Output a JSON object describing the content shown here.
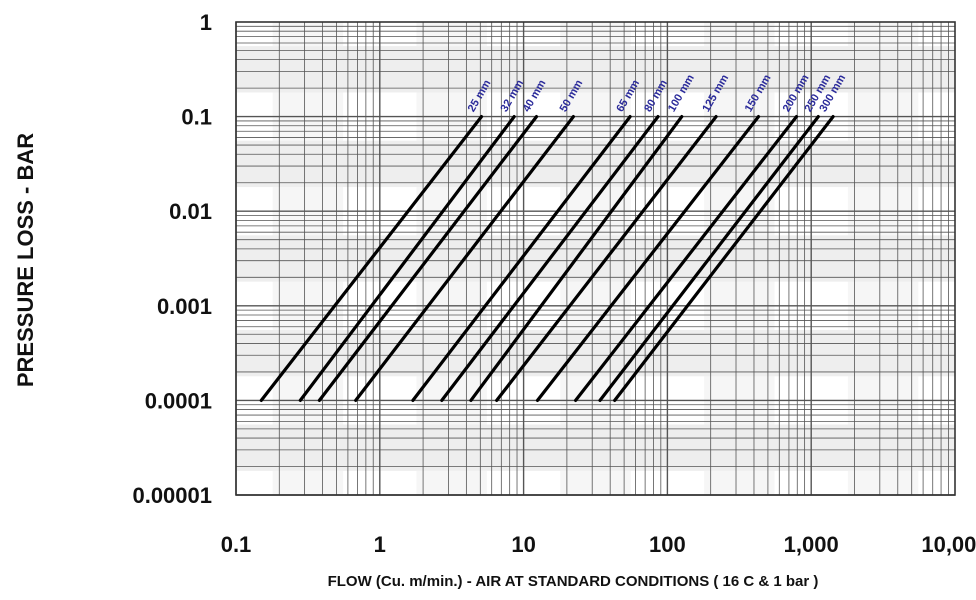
{
  "chart_data": {
    "type": "line",
    "title": "",
    "xlabel": "FLOW (Cu. m/min.) - AIR AT STANDARD CONDITIONS ( 16 C & 1 bar )",
    "ylabel": "PRESSURE LOSS - BAR",
    "x_scale": "log",
    "y_scale": "log",
    "xlim": [
      0.1,
      10000
    ],
    "ylim": [
      1e-05,
      1
    ],
    "grid": true,
    "x_tick_labels": [
      "0.1",
      "1",
      "10",
      "100",
      "1,000",
      "10,000"
    ],
    "y_tick_labels": [
      "1",
      "0.1",
      "0.01",
      "0.001",
      "0.0001",
      "0.00001"
    ],
    "series": [
      {
        "name": "25 mm",
        "x": [
          0.15,
          5.1
        ],
        "y": [
          0.0001,
          0.1
        ]
      },
      {
        "name": "32 mm",
        "x": [
          0.28,
          8.6
        ],
        "y": [
          0.0001,
          0.1
        ]
      },
      {
        "name": "40 mm",
        "x": [
          0.38,
          12.3
        ],
        "y": [
          0.0001,
          0.1
        ]
      },
      {
        "name": "50 mm",
        "x": [
          0.68,
          22.2
        ],
        "y": [
          0.0001,
          0.1
        ]
      },
      {
        "name": "65 mm",
        "x": [
          1.7,
          55
        ],
        "y": [
          0.0001,
          0.1
        ]
      },
      {
        "name": "80 mm",
        "x": [
          2.7,
          86
        ],
        "y": [
          0.0001,
          0.1
        ]
      },
      {
        "name": "100 mm",
        "x": [
          4.3,
          126
        ],
        "y": [
          0.0001,
          0.1
        ]
      },
      {
        "name": "125 mm",
        "x": [
          6.5,
          218
        ],
        "y": [
          0.0001,
          0.1
        ]
      },
      {
        "name": "150 mm",
        "x": [
          12.5,
          430
        ],
        "y": [
          0.0001,
          0.1
        ]
      },
      {
        "name": "200 mm",
        "x": [
          23,
          790
        ],
        "y": [
          0.0001,
          0.1
        ]
      },
      {
        "name": "250 mm",
        "x": [
          34,
          1120
        ],
        "y": [
          0.0001,
          0.1
        ]
      },
      {
        "name": "300 mm",
        "x": [
          43,
          1420
        ],
        "y": [
          0.0001,
          0.1
        ]
      }
    ],
    "series_label_texts": [
      "25 mm",
      "32 mm",
      "40 mm",
      "50 mm",
      "65 mm",
      "80 mm",
      "100 mm",
      "125 mm",
      "150 mm",
      "200 mm",
      "250 mm",
      "300 mm"
    ],
    "colors": {
      "line": "#000000",
      "series_label": "#2a2a9a",
      "grid": "#555555",
      "band": "#eeeeee",
      "background": "#ffffff"
    }
  }
}
